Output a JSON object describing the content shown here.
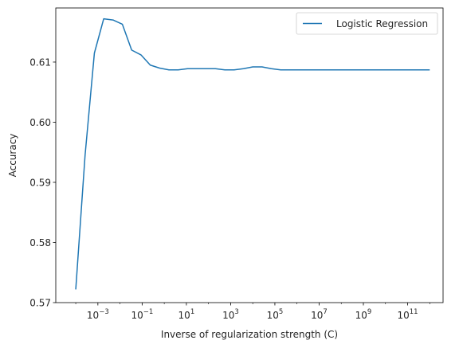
{
  "chart_data": {
    "type": "line",
    "title": "",
    "xlabel": "Inverse of regularization strength (C)",
    "ylabel": "Accuracy",
    "xscale": "log",
    "xlim": [
      1.25e-05,
      4000000000000
    ],
    "ylim": [
      0.57,
      0.619
    ],
    "grid": false,
    "legend": {
      "position": "top-right",
      "entries": [
        "Logistic Regression"
      ]
    },
    "xticks": [
      {
        "value": 0.001,
        "base": "10",
        "exp": "−3"
      },
      {
        "value": 0.1,
        "base": "10",
        "exp": "−1"
      },
      {
        "value": 10,
        "base": "10",
        "exp": "1"
      },
      {
        "value": 1000,
        "base": "10",
        "exp": "3"
      },
      {
        "value": 100000,
        "base": "10",
        "exp": "5"
      },
      {
        "value": 10000000,
        "base": "10",
        "exp": "7"
      },
      {
        "value": 1000000000,
        "base": "10",
        "exp": "9"
      },
      {
        "value": 100000000000,
        "base": "10",
        "exp": "11"
      }
    ],
    "yticks": [
      "0.57",
      "0.58",
      "0.59",
      "0.60",
      "0.61"
    ],
    "series": [
      {
        "name": "Logistic Regression",
        "color": "#1f77b4",
        "x": [
          0.0001,
          0.0002637,
          0.0006952,
          0.001833,
          0.004833,
          0.01274,
          0.0336,
          0.08859,
          0.2336,
          0.6158,
          1.624,
          4.281,
          11.29,
          29.76,
          78.48,
          206.9,
          545.6,
          1438,
          3793,
          10000,
          26370,
          69520,
          183300,
          483300,
          1274000,
          3360000,
          8859000,
          23360000,
          61580000,
          162400000,
          428100000,
          1129000000,
          2976000000,
          7848000000,
          20690000000,
          54560000000,
          143800000000,
          379300000000,
          1000000000000
        ],
        "y": [
          0.5722,
          0.5945,
          0.6115,
          0.6172,
          0.617,
          0.6163,
          0.612,
          0.6112,
          0.6095,
          0.609,
          0.6087,
          0.6087,
          0.6089,
          0.6089,
          0.6089,
          0.6089,
          0.6087,
          0.6087,
          0.6089,
          0.6092,
          0.6092,
          0.6089,
          0.6087,
          0.6087,
          0.6087,
          0.6087,
          0.6087,
          0.6087,
          0.6087,
          0.6087,
          0.6087,
          0.6087,
          0.6087,
          0.6087,
          0.6087,
          0.6087,
          0.6087,
          0.6087,
          0.6087
        ]
      }
    ]
  }
}
